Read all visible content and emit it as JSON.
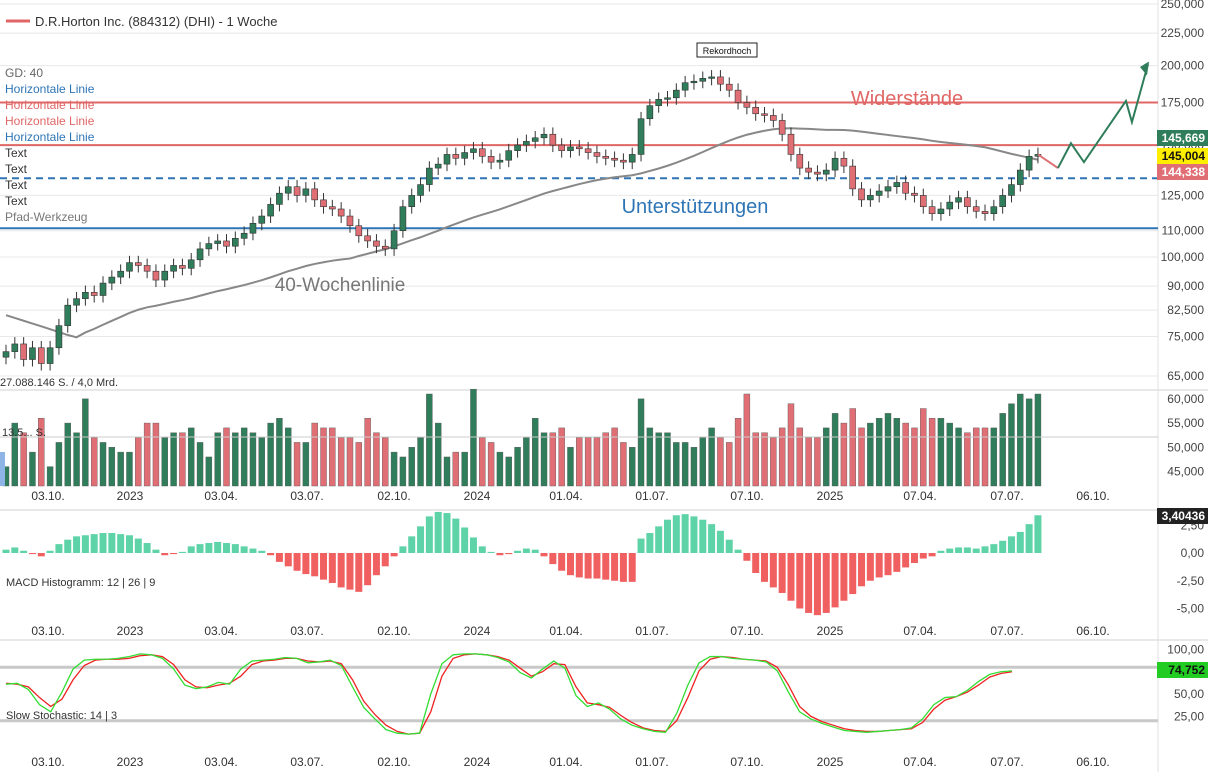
{
  "header": {
    "title": "D.R.Horton Inc. (884312) (DHI) - 1 Woche",
    "series_color": "#e06666"
  },
  "tool_list": [
    "GD: 40",
    "Horizontale Linie",
    "Horizontale Linie",
    "Horizontale Linie",
    "Horizontale Linie",
    "Text",
    "Text",
    "Text",
    "Text",
    "Pfad-Werkzeug"
  ],
  "tool_colors": [
    "#666666",
    "#2e75b6",
    "#e06666",
    "#e06666",
    "#2e75b6",
    "#333333",
    "#333333",
    "#333333",
    "#333333",
    "#777777"
  ],
  "price_axis": {
    "ticks": [
      "250,000",
      "225,000",
      "200,000",
      "175,000",
      "150,000",
      "125,000",
      "110,000",
      "100,000",
      "90,000",
      "82,500",
      "75,000",
      "65,000"
    ],
    "badges": {
      "last": "145,669",
      "current": "145,004",
      "sma": "144,338"
    },
    "badge_colors": {
      "last": "#2f7d5a",
      "current": "#ffee00",
      "sma": "#e06f75"
    }
  },
  "volume_axis": {
    "ticks": [
      "60,000",
      "55,000",
      "50,000",
      "45,000"
    ]
  },
  "volume_label": "27.088.146 S. / 4,0 Mrd.",
  "volume_sublabel": "13.5... S.",
  "macd": {
    "label": "MACD Histogramm: 12 | 26 | 9",
    "ticks": [
      "2,50",
      "0,00",
      "-2,50",
      "-5,00"
    ],
    "badge": "3,40436"
  },
  "stoch": {
    "label": "Slow Stochastic: 14 | 3",
    "ticks": [
      "100,00",
      "50,00",
      "25,00"
    ],
    "badge": "74,752"
  },
  "date_labels": [
    "03.10.",
    "2023",
    "03.04.",
    "03.07.",
    "02.10.",
    "2024",
    "01.04.",
    "01.07.",
    "07.10.",
    "2025",
    "07.04.",
    "07.07.",
    "06.10."
  ],
  "annotations": {
    "record": "Rekordhoch",
    "resistance": "Widerstände",
    "support": "Unterstützungen",
    "ma": "40-Wochenlinie"
  },
  "colors": {
    "up": "#2f7d5a",
    "down": "#e06f75",
    "ma": "#888888",
    "resistance": "#e06666",
    "support": "#2e75b6",
    "macd_pos": "#5fd3a8",
    "macd_neg": "#f06060",
    "stoch_k": "#33dd33",
    "stoch_d": "#ee2222",
    "path": "#2f7d5a",
    "grid": "#e8e8e8"
  },
  "chart_data": {
    "type": "candlestick",
    "title": "D.R.Horton Inc. (884312) (DHI) - 1 Woche",
    "interval": "1 Woche",
    "price_scale": "log",
    "ylim": [
      65,
      250
    ],
    "levels": {
      "resistance": [
        175,
        150
      ],
      "support": [
        133,
        111
      ],
      "record_high": 199
    },
    "moving_average": "GD: 40",
    "series_close": [
      71,
      73,
      69,
      72,
      68,
      72,
      78,
      84,
      86,
      88,
      87,
      91,
      93,
      95,
      98,
      97,
      95,
      92,
      95,
      97,
      96,
      99,
      103,
      105,
      106,
      104,
      107,
      109,
      113,
      116,
      121,
      126,
      129,
      125,
      128,
      123,
      120,
      119,
      116,
      112,
      108,
      106,
      104,
      103,
      110,
      120,
      125,
      130,
      138,
      140,
      145,
      143,
      146,
      148,
      144,
      141,
      142,
      147,
      150,
      152,
      154,
      156,
      150,
      147,
      149,
      148,
      146,
      144,
      143,
      142,
      141,
      145,
      165,
      173,
      177,
      178,
      183,
      188,
      189,
      191,
      192,
      187,
      183,
      175,
      172,
      168,
      167,
      164,
      156,
      145,
      138,
      136,
      135,
      137,
      143,
      139,
      128,
      123,
      125,
      127,
      129,
      131,
      126,
      125,
      120,
      117,
      119,
      122,
      124,
      120,
      118,
      117,
      120,
      125,
      130,
      137,
      144,
      145
    ],
    "series_volume": [
      47,
      56,
      54,
      50,
      57,
      47,
      52,
      56,
      54,
      61,
      53,
      52,
      51,
      50,
      50,
      53,
      56,
      56,
      53,
      54,
      54,
      55,
      52,
      49,
      54,
      55,
      54,
      55,
      54,
      53,
      56,
      57,
      55,
      52,
      52,
      56,
      55,
      55,
      53,
      53,
      52,
      57,
      54,
      53,
      50,
      49,
      51,
      53,
      62,
      56,
      49,
      50,
      50,
      63,
      53,
      52,
      50,
      49,
      51,
      53,
      57,
      54,
      54,
      55,
      51,
      53,
      53,
      53,
      54,
      55,
      52,
      51,
      61,
      55,
      54,
      54,
      52,
      52,
      51,
      53,
      55,
      53,
      52,
      57,
      62,
      54,
      54,
      53,
      55,
      60,
      55,
      53,
      53,
      55,
      58,
      56,
      59,
      55,
      56,
      57,
      58,
      57,
      56,
      55,
      59,
      57,
      57,
      56,
      55,
      54,
      55,
      55,
      55,
      58,
      60,
      62,
      61,
      62
    ],
    "macd_histogram": [
      0.3,
      0.5,
      0.2,
      -0.1,
      -0.3,
      0.2,
      0.8,
      1.2,
      1.5,
      1.6,
      1.7,
      1.8,
      1.8,
      1.7,
      1.6,
      1.3,
      0.9,
      0.3,
      -0.2,
      -0.1,
      0.1,
      0.6,
      0.8,
      0.9,
      1.0,
      0.9,
      0.8,
      0.6,
      0.4,
      0.2,
      -0.2,
      -0.8,
      -1.2,
      -1.6,
      -1.9,
      -2.1,
      -2.4,
      -2.7,
      -3.1,
      -3.3,
      -3.5,
      -2.9,
      -2.0,
      -1.2,
      -0.3,
      0.6,
      1.5,
      2.4,
      3.3,
      3.7,
      3.6,
      3.1,
      2.3,
      1.4,
      0.6,
      0.1,
      -0.2,
      -0.1,
      0.2,
      0.4,
      0.3,
      -0.3,
      -1.0,
      -1.6,
      -2.0,
      -2.2,
      -2.3,
      -2.3,
      -2.4,
      -2.5,
      -2.6,
      -2.6,
      1.3,
      1.8,
      2.4,
      3.0,
      3.4,
      3.5,
      3.3,
      3.0,
      2.6,
      2.0,
      1.2,
      0.3,
      -0.7,
      -1.8,
      -2.6,
      -3.1,
      -3.6,
      -4.3,
      -5.0,
      -5.4,
      -5.6,
      -5.4,
      -4.9,
      -4.3,
      -3.7,
      -3.0,
      -2.5,
      -2.2,
      -2.0,
      -1.7,
      -1.3,
      -0.9,
      -0.5,
      -0.3,
      0.2,
      0.4,
      0.5,
      0.5,
      0.4,
      0.6,
      0.8,
      1.1,
      1.5,
      1.9,
      2.6,
      3.4
    ],
    "stochastic_k": [
      61,
      62,
      55,
      38,
      30,
      52,
      78,
      88,
      89,
      89,
      90,
      92,
      95,
      94,
      90,
      78,
      60,
      56,
      58,
      63,
      61,
      78,
      87,
      88,
      89,
      91,
      90,
      85,
      86,
      88,
      82,
      58,
      35,
      22,
      10,
      6,
      5,
      6,
      50,
      84,
      94,
      95,
      95,
      94,
      91,
      86,
      74,
      68,
      78,
      87,
      79,
      48,
      36,
      40,
      33,
      22,
      15,
      11,
      8,
      7,
      28,
      60,
      85,
      92,
      92,
      90,
      89,
      88,
      86,
      76,
      52,
      30,
      22,
      17,
      13,
      9,
      8,
      7,
      8,
      9,
      10,
      12,
      22,
      38,
      46,
      47,
      54,
      64,
      72,
      75,
      76
    ],
    "stochastic_d": [
      62,
      61,
      58,
      46,
      36,
      44,
      66,
      82,
      88,
      89,
      89,
      90,
      93,
      94,
      92,
      83,
      66,
      58,
      57,
      60,
      62,
      70,
      83,
      87,
      88,
      90,
      90,
      87,
      86,
      87,
      84,
      66,
      42,
      27,
      15,
      8,
      5,
      6,
      30,
      70,
      90,
      94,
      95,
      94,
      92,
      88,
      79,
      70,
      75,
      84,
      83,
      58,
      40,
      38,
      35,
      26,
      18,
      12,
      9,
      8,
      20,
      46,
      76,
      89,
      92,
      91,
      89,
      88,
      87,
      80,
      60,
      36,
      25,
      19,
      15,
      11,
      9,
      8,
      8,
      9,
      10,
      11,
      18,
      33,
      43,
      47,
      52,
      60,
      69,
      73,
      75
    ]
  }
}
